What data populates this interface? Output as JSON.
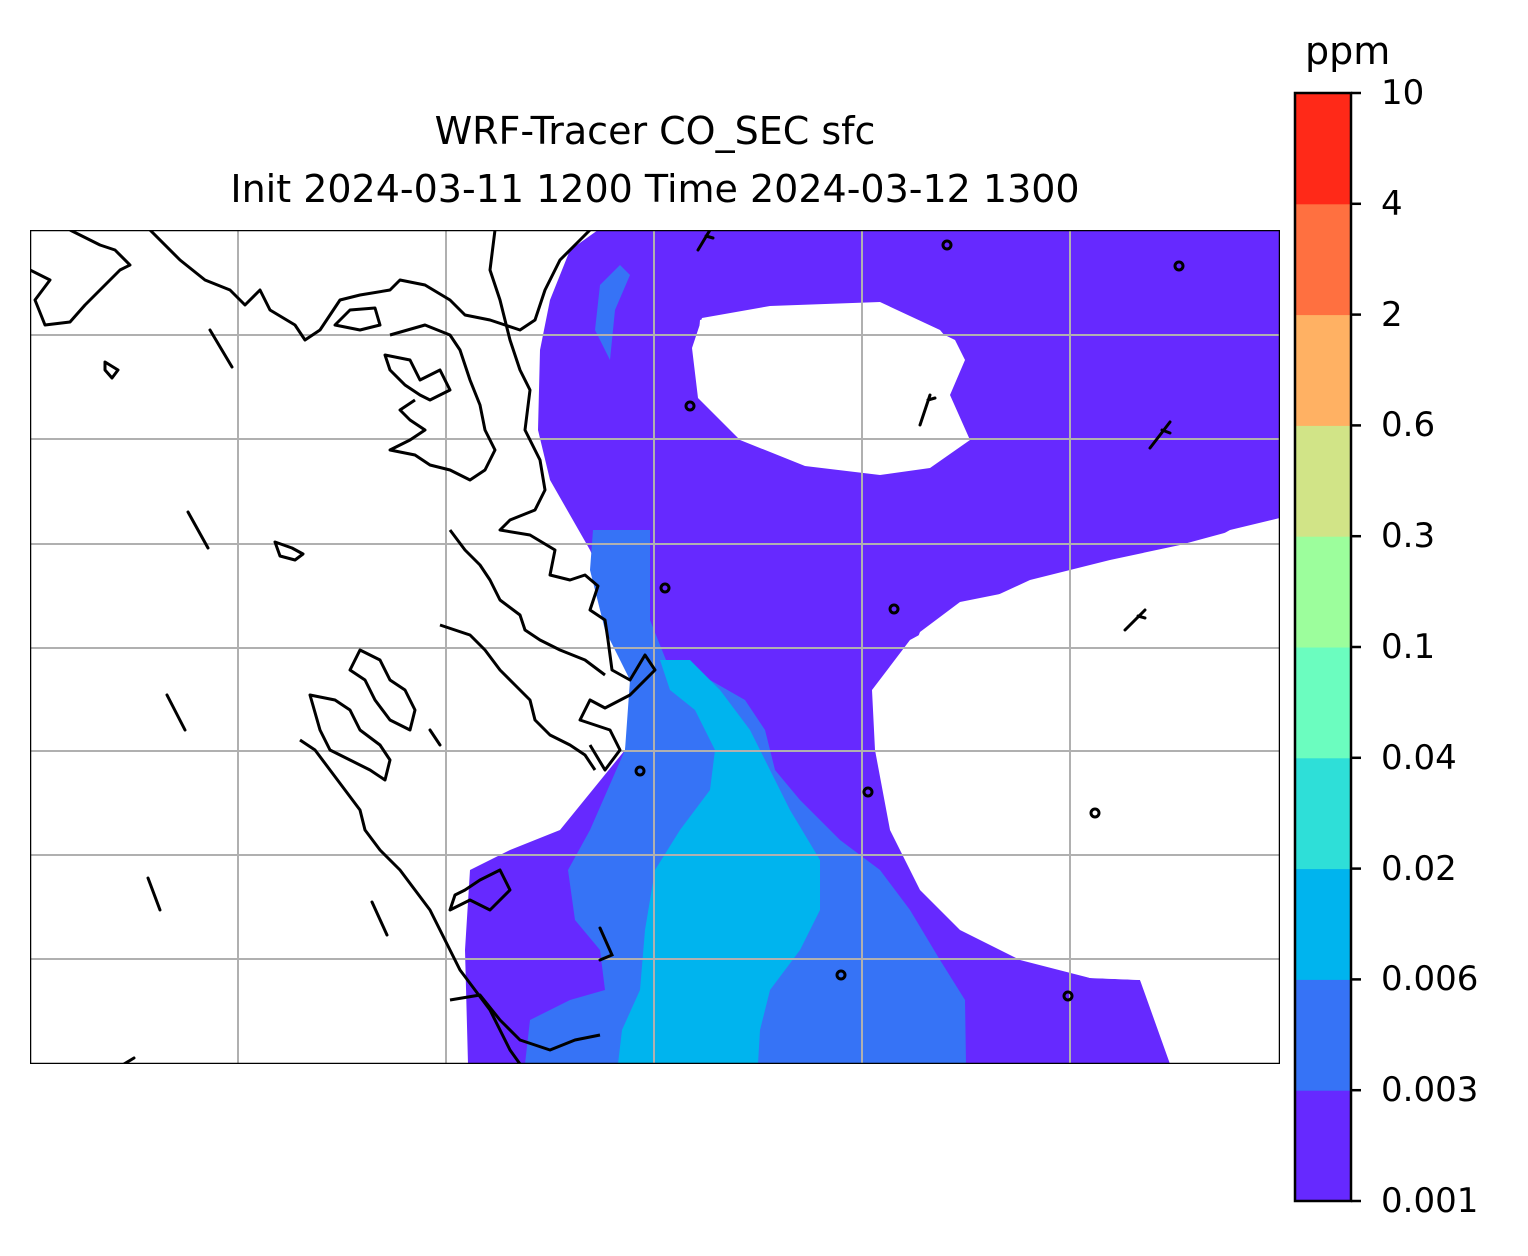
{
  "title_line1": "WRF-Tracer CO_SEC sfc",
  "title_line2": "Init 2024-03-11 1200 Time 2024-03-12 1300",
  "colorbar": {
    "unit": "ppm",
    "levels": [
      "0.001",
      "0.003",
      "0.006",
      "0.02",
      "0.04",
      "0.1",
      "0.3",
      "0.6",
      "2",
      "4",
      "10"
    ],
    "colors": [
      "#6629ff",
      "#3673f6",
      "#00b4ee",
      "#2edfd8",
      "#6bfdbf",
      "#9cfe9c",
      "#d1e487",
      "#ffb163",
      "#ff7040",
      "#ff2918"
    ]
  },
  "map": {
    "grid": true,
    "coastline_color": "#000000",
    "background": "#ffffff",
    "wind_markers": "calm circles and short barbs"
  }
}
